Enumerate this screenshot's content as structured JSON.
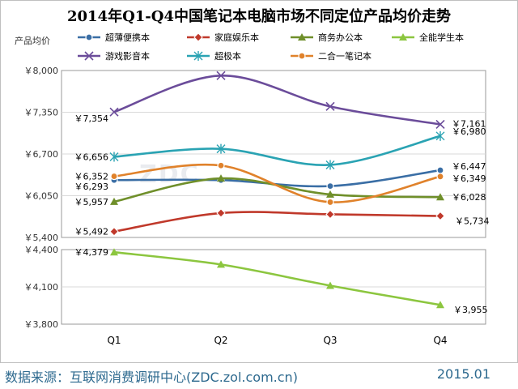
{
  "chart_data": {
    "type": "line",
    "title": "2014年Q1-Q4中国笔记本电脑市场不同定位产品均价走势",
    "ylabel": "产品均价",
    "xlabel": "",
    "categories": [
      "Q1",
      "Q2",
      "Q3",
      "Q4"
    ],
    "upper_panel": {
      "ylim": [
        5400,
        8000
      ],
      "ticks": [
        "￥8,000",
        "￥7,350",
        "￥6,700",
        "￥6,050",
        "￥5,400"
      ],
      "tick_values": [
        8000,
        7350,
        6700,
        6050,
        5400
      ]
    },
    "lower_panel": {
      "ylim": [
        3800,
        4400
      ],
      "ticks": [
        "￥4,400",
        "￥4,100",
        "￥3,800"
      ],
      "tick_values": [
        4400,
        4100,
        3800
      ]
    },
    "series": [
      {
        "name": "超薄便携本",
        "color": "#3a6ea5",
        "marker": "circle",
        "panel": "upper",
        "values": [
          6293,
          6293,
          6200,
          6447
        ],
        "labels": [
          "￥6,293",
          "",
          "",
          "￥6,447"
        ]
      },
      {
        "name": "家庭娱乐本",
        "color": "#c0392b",
        "marker": "diamond",
        "panel": "upper",
        "values": [
          5492,
          5780,
          5760,
          5734
        ],
        "labels": [
          "￥5,492",
          "",
          "",
          "￥5,734"
        ]
      },
      {
        "name": "商务办公本",
        "color": "#6f8f2a",
        "marker": "triangle",
        "panel": "upper",
        "values": [
          5957,
          6320,
          6070,
          6028
        ],
        "labels": [
          "￥5,957",
          "",
          "",
          "￥6,028"
        ]
      },
      {
        "name": "全能学生本",
        "color": "#8cc63f",
        "marker": "triangle",
        "panel": "lower",
        "values": [
          4379,
          4280,
          4110,
          3955
        ],
        "labels": [
          "￥4,379",
          "",
          "",
          "￥3,955"
        ]
      },
      {
        "name": "游戏影音本",
        "color": "#6b4c9a",
        "marker": "x",
        "panel": "upper",
        "values": [
          7354,
          7920,
          7440,
          7161
        ],
        "labels": [
          "￥7,354",
          "",
          "",
          "￥7,161"
        ]
      },
      {
        "name": "超极本",
        "color": "#2aa3b3",
        "marker": "asterisk",
        "panel": "upper",
        "values": [
          6656,
          6780,
          6530,
          6980
        ],
        "labels": [
          "￥6,656",
          "",
          "",
          "￥6,980"
        ]
      },
      {
        "name": "二合一笔记本",
        "color": "#e0822b",
        "marker": "circle",
        "panel": "upper",
        "values": [
          6352,
          6520,
          5950,
          6349
        ],
        "labels": [
          "￥6,352",
          "",
          "",
          "￥6,349"
        ]
      }
    ]
  },
  "footer": {
    "source": "数据来源：互联网消费调研中心(ZDC.zol.com.cn)",
    "date": "2015.01"
  },
  "watermark": "ZDC"
}
